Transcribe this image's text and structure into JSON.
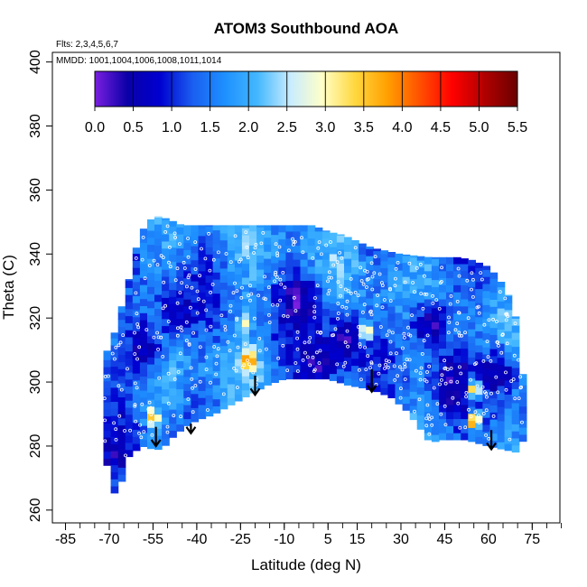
{
  "chart_data": {
    "type": "heatmap",
    "title": "ATOM3 Southbound AOA",
    "annotation_flights": "Flts: 2,3,4,5,6,7",
    "annotation_dates": "MMDD: 1001,1004,1006,1008,1011,1014",
    "xlabel": "Latitude (deg N)",
    "ylabel": "Theta (C)",
    "xlim": [
      -85,
      85
    ],
    "ylim": [
      260,
      400
    ],
    "x_tick_labels": [
      "-85",
      "-70",
      "-55",
      "-40",
      "-25",
      "-10",
      "5",
      "15",
      "30",
      "45",
      "60",
      "75"
    ],
    "x_tick_values": [
      -85,
      -70,
      -55,
      -40,
      -25,
      -10,
      5,
      15,
      30,
      45,
      60,
      75
    ],
    "y_tick_labels": [
      "260",
      "280",
      "300",
      "320",
      "340",
      "360",
      "380",
      "400"
    ],
    "y_tick_values": [
      260,
      280,
      300,
      320,
      340,
      360,
      380,
      400
    ],
    "colorbar": {
      "range": [
        0,
        5.5
      ],
      "tick_labels": [
        "0.0",
        "0.5",
        "1.0",
        "1.5",
        "2.0",
        "2.5",
        "3.0",
        "3.5",
        "4.0",
        "4.5",
        "5.0",
        "5.5"
      ],
      "tick_values": [
        0,
        0.5,
        1,
        1.5,
        2,
        2.5,
        3,
        3.5,
        4,
        4.5,
        5,
        5.5
      ],
      "colors": [
        "#7a1fe0",
        "#0a00a8",
        "#0000d0",
        "#1a5ef0",
        "#1e90ff",
        "#44b8ff",
        "#c8ecff",
        "#ffffc8",
        "#ffd840",
        "#ffa000",
        "#ff5000",
        "#ff0000",
        "#b00000",
        "#6a0000"
      ]
    },
    "domain_top": [
      [
        -72,
        307
      ],
      [
        -68,
        316
      ],
      [
        -63,
        333
      ],
      [
        -60,
        345
      ],
      [
        -57,
        350
      ],
      [
        -54,
        352
      ],
      [
        -50,
        351
      ],
      [
        -45,
        349
      ],
      [
        -40,
        349
      ],
      [
        -30,
        349
      ],
      [
        -20,
        349
      ],
      [
        -10,
        349
      ],
      [
        0,
        349
      ],
      [
        5,
        347
      ],
      [
        10,
        346
      ],
      [
        15,
        344
      ],
      [
        20,
        342
      ],
      [
        30,
        340
      ],
      [
        40,
        339
      ],
      [
        50,
        339
      ],
      [
        55,
        338
      ],
      [
        60,
        336
      ],
      [
        63,
        333
      ],
      [
        66,
        329
      ],
      [
        69,
        322
      ],
      [
        71,
        310
      ],
      [
        72,
        300
      ]
    ],
    "domain_bottom": [
      [
        -73,
        288
      ],
      [
        -71,
        276
      ],
      [
        -70,
        268
      ],
      [
        -68,
        265
      ],
      [
        -66,
        268
      ],
      [
        -64,
        276
      ],
      [
        -62,
        278
      ],
      [
        -58,
        280
      ],
      [
        -55,
        279
      ],
      [
        -52,
        279
      ],
      [
        -48,
        283
      ],
      [
        -44,
        286
      ],
      [
        -40,
        288
      ],
      [
        -34,
        290
      ],
      [
        -28,
        293
      ],
      [
        -22,
        296
      ],
      [
        -16,
        299
      ],
      [
        -10,
        301
      ],
      [
        -5,
        301
      ],
      [
        5,
        301
      ],
      [
        12,
        299
      ],
      [
        18,
        298
      ],
      [
        22,
        297
      ],
      [
        27,
        295
      ],
      [
        32,
        291
      ],
      [
        37,
        285
      ],
      [
        40,
        281
      ],
      [
        44,
        282
      ],
      [
        52,
        282
      ],
      [
        60,
        280
      ],
      [
        65,
        279
      ],
      [
        70,
        278
      ],
      [
        72,
        282
      ]
    ],
    "arrows_x": [
      -54,
      -42,
      -20,
      20,
      61
    ],
    "arrows_y_top": [
      286,
      287,
      302,
      304,
      285
    ],
    "arrows_y_bottom": [
      280,
      284,
      296,
      297,
      279
    ],
    "hotspots": [
      {
        "x": -22,
        "y": 307,
        "value": 4.2
      },
      {
        "x": -33,
        "y": 288,
        "value": 3.6
      },
      {
        "x": -55,
        "y": 289,
        "value": 3.8
      },
      {
        "x": 55,
        "y": 288,
        "value": 4.1
      },
      {
        "x": 55,
        "y": 298,
        "value": 3.5
      },
      {
        "x": 18,
        "y": 316,
        "value": 3.3
      },
      {
        "x": -24,
        "y": 318,
        "value": 3.1
      }
    ],
    "lowspots": [
      {
        "x": -5,
        "y": 325,
        "value": 0.3
      },
      {
        "x": 10,
        "y": 312,
        "value": 0.4
      },
      {
        "x": 40,
        "y": 318,
        "value": 0.4
      },
      {
        "x": 48,
        "y": 300,
        "value": 0.3
      },
      {
        "x": -58,
        "y": 312,
        "value": 0.5
      },
      {
        "x": -47,
        "y": 322,
        "value": 0.6
      },
      {
        "x": -68,
        "y": 278,
        "value": 0.5
      },
      {
        "x": 0,
        "y": 305,
        "value": 0.4
      },
      {
        "x": 63,
        "y": 303,
        "value": 0.5
      }
    ]
  }
}
